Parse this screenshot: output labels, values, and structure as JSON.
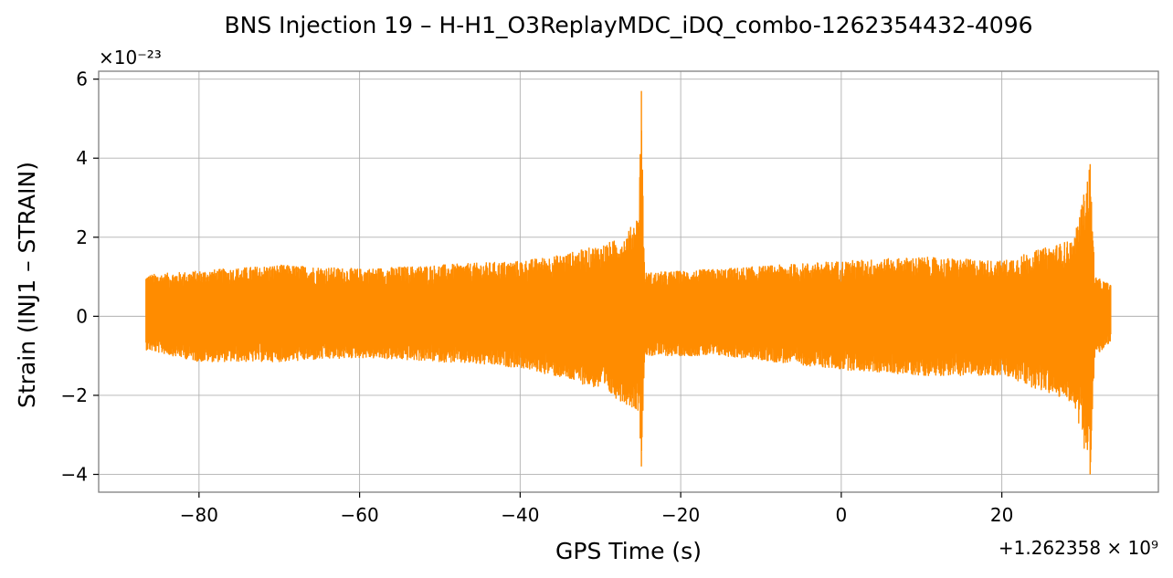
{
  "chart_data": {
    "type": "line",
    "title": "BNS Injection 19 – H-H1_O3ReplayMDC_iDQ_combo-1262354432-4096",
    "xlabel": "GPS Time (s)",
    "ylabel": "Strain (INJ1 – STRAIN)",
    "x_offset_label": "+1.262358 × 10⁹",
    "y_scale_label": "×10⁻²³",
    "x_offset": 1262358000,
    "y_scale": 1e-23,
    "xlim": [
      -92.5,
      39.5
    ],
    "ylim": [
      -4.45,
      6.2
    ],
    "xticks": [
      -80,
      -60,
      -40,
      -20,
      0,
      20
    ],
    "xtick_labels": [
      "−80",
      "−60",
      "−40",
      "−20",
      "0",
      "20"
    ],
    "yticks": [
      -4,
      -2,
      0,
      2,
      4,
      6
    ],
    "ytick_labels": [
      "−4",
      "−2",
      "0",
      "2",
      "4",
      "6"
    ],
    "grid": true,
    "series": [
      {
        "color": "#ff8c00",
        "x_range": [
          -86.6,
          33.6
        ],
        "envelope": [
          {
            "x": -86.6,
            "upper": 1.05,
            "lower": -0.85
          },
          {
            "x": -80.0,
            "upper": 1.15,
            "lower": -1.15
          },
          {
            "x": -70.0,
            "upper": 1.3,
            "lower": -1.15
          },
          {
            "x": -60.0,
            "upper": 1.2,
            "lower": -1.05
          },
          {
            "x": -50.0,
            "upper": 1.3,
            "lower": -1.15
          },
          {
            "x": -40.0,
            "upper": 1.4,
            "lower": -1.3
          },
          {
            "x": -35.0,
            "upper": 1.55,
            "lower": -1.55
          },
          {
            "x": -30.0,
            "upper": 1.8,
            "lower": -1.85
          },
          {
            "x": -27.0,
            "upper": 2.0,
            "lower": -2.2
          },
          {
            "x": -25.2,
            "upper": 2.6,
            "lower": -2.4
          },
          {
            "x": -24.9,
            "upper": 5.7,
            "lower": -3.8
          },
          {
            "x": -24.5,
            "upper": 1.1,
            "lower": -1.0
          },
          {
            "x": -15.0,
            "upper": 1.2,
            "lower": -1.0
          },
          {
            "x": 0.0,
            "upper": 1.4,
            "lower": -1.35
          },
          {
            "x": 10.0,
            "upper": 1.5,
            "lower": -1.5
          },
          {
            "x": 20.0,
            "upper": 1.4,
            "lower": -1.5
          },
          {
            "x": 29.0,
            "upper": 1.95,
            "lower": -2.2
          },
          {
            "x": 31.0,
            "upper": 3.85,
            "lower": -4.0
          },
          {
            "x": 31.6,
            "upper": 1.0,
            "lower": -1.0
          },
          {
            "x": 33.6,
            "upper": 0.8,
            "lower": -0.7
          }
        ]
      }
    ]
  }
}
